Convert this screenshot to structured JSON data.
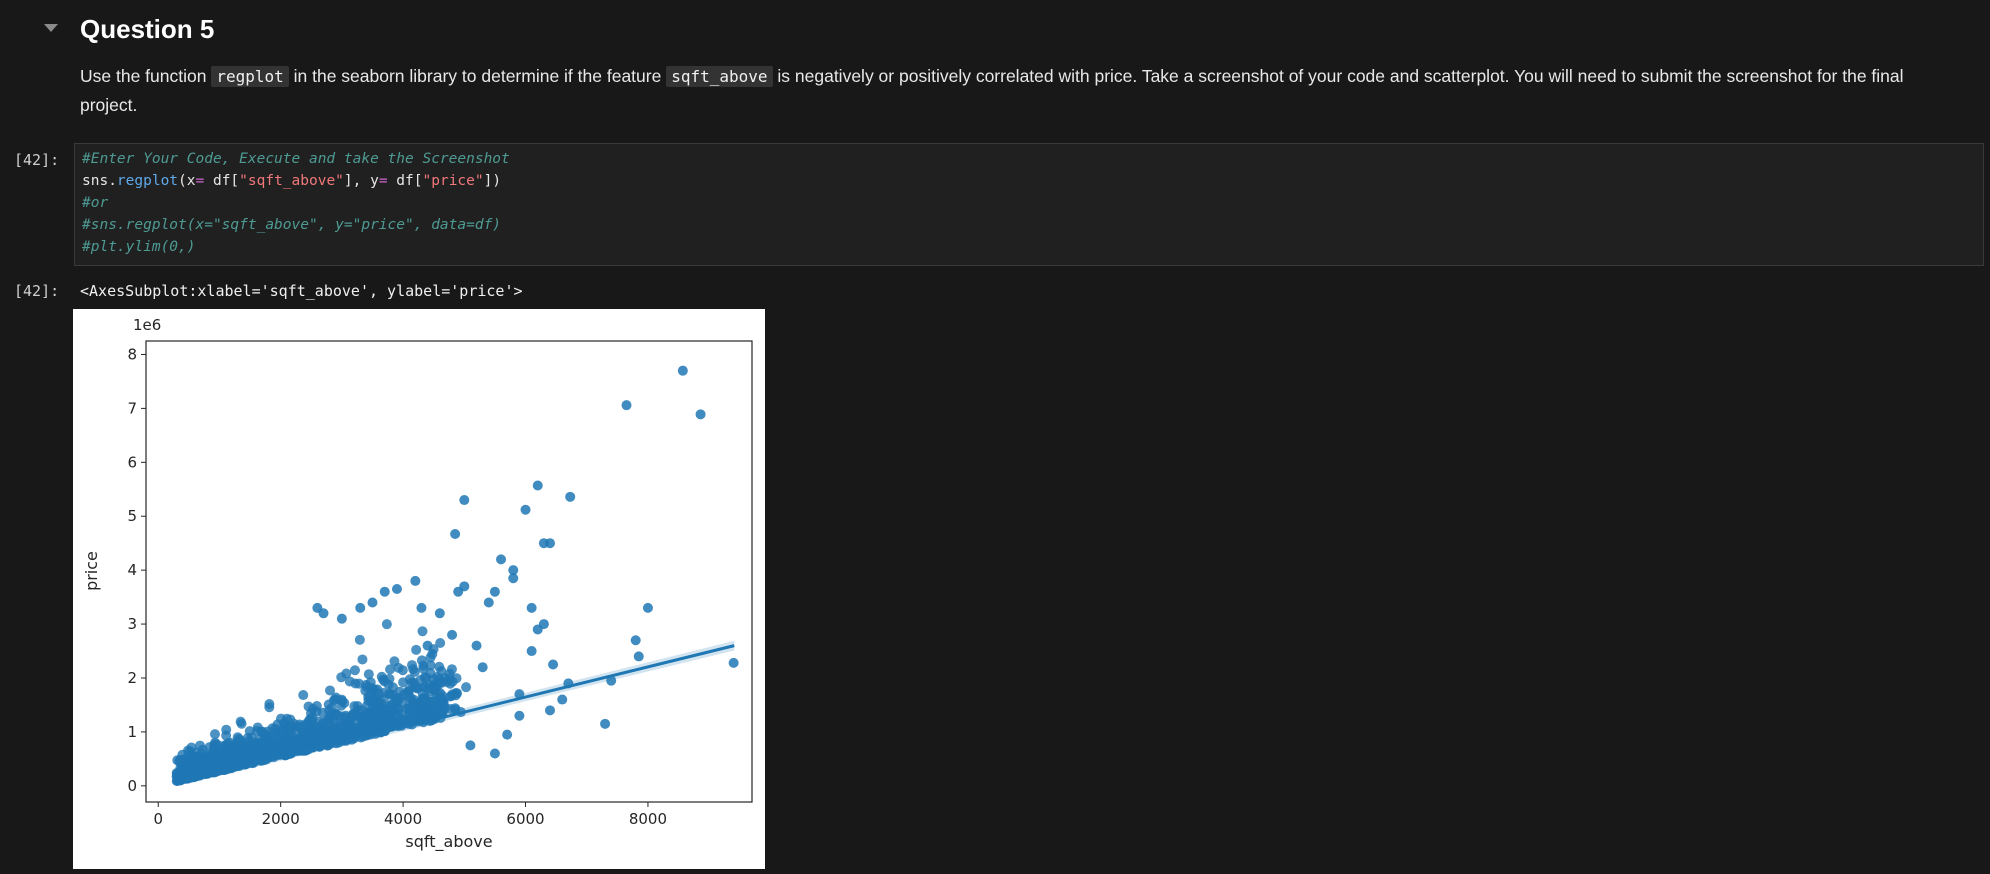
{
  "markdown": {
    "title": "Question 5",
    "paragraph": {
      "part1": "Use the function ",
      "code1": "regplot",
      "part2": " in the seaborn library to determine if the feature ",
      "code2": "sqft_above",
      "part3": " is negatively or positively correlated with price. Take a screenshot of your code and scatterplot. You will need to submit the screenshot for the final project."
    }
  },
  "code_cell": {
    "prompt": "[42]:",
    "lines": {
      "l1": "#Enter Your Code, Execute and take the Screenshot",
      "l2_a": "sns.",
      "l2_fn": "regplot",
      "l2_b": "(x",
      "l2_eq1": "=",
      "l2_c": " df[",
      "l2_s1": "\"sqft_above\"",
      "l2_d": "], y",
      "l2_eq2": "=",
      "l2_e": " df[",
      "l2_s2": "\"price\"",
      "l2_f": "])",
      "l3": "#or",
      "l4": "#sns.regplot(x=\"sqft_above\", y=\"price\", data=df)",
      "l5": "#plt.ylim(0,)"
    }
  },
  "output": {
    "prompt": "[42]:",
    "text": "<AxesSubplot:xlabel='sqft_above', ylabel='price'>"
  },
  "chart_data": {
    "type": "scatter",
    "xlabel": "sqft_above",
    "ylabel": "price",
    "offset_label": "1e6",
    "xlim": [
      -200,
      9700
    ],
    "ylim": [
      -0.3,
      8.25
    ],
    "xticks": [
      0,
      2000,
      4000,
      6000,
      8000
    ],
    "yticks": [
      0,
      1,
      2,
      3,
      4,
      5,
      6,
      7,
      8
    ],
    "color": "#1f77b4",
    "regression": {
      "x0": 290,
      "y0": 0.05,
      "x1": 9410,
      "y1": 2.6
    },
    "outliers": [
      [
        8570,
        7.7
      ],
      [
        7650,
        7.06
      ],
      [
        8860,
        6.89
      ],
      [
        6200,
        5.57
      ],
      [
        6730,
        5.36
      ],
      [
        5000,
        5.3
      ],
      [
        6000,
        5.12
      ],
      [
        4850,
        4.67
      ],
      [
        6300,
        4.5
      ],
      [
        6400,
        4.5
      ],
      [
        5600,
        4.2
      ],
      [
        5800,
        4.0
      ],
      [
        5800,
        3.85
      ],
      [
        4900,
        3.6
      ],
      [
        5000,
        3.7
      ],
      [
        5500,
        3.6
      ],
      [
        6100,
        3.3
      ],
      [
        8000,
        3.3
      ],
      [
        5400,
        3.4
      ],
      [
        6300,
        3.0
      ],
      [
        6200,
        2.9
      ],
      [
        7800,
        2.7
      ],
      [
        6100,
        2.5
      ],
      [
        7850,
        2.4
      ],
      [
        9400,
        2.28
      ],
      [
        6450,
        2.25
      ],
      [
        7400,
        1.95
      ],
      [
        6700,
        1.9
      ],
      [
        6600,
        1.6
      ],
      [
        7300,
        1.15
      ],
      [
        5700,
        0.95
      ],
      [
        5500,
        0.6
      ],
      [
        5100,
        0.75
      ],
      [
        4800,
        2.8
      ],
      [
        5200,
        2.6
      ],
      [
        4300,
        3.3
      ],
      [
        4200,
        3.8
      ],
      [
        3900,
        3.65
      ],
      [
        3700,
        3.6
      ],
      [
        3500,
        3.4
      ],
      [
        3300,
        3.3
      ],
      [
        2600,
        3.3
      ],
      [
        2700,
        3.2
      ],
      [
        3000,
        3.1
      ],
      [
        5300,
        2.2
      ],
      [
        5900,
        1.7
      ],
      [
        6400,
        1.4
      ],
      [
        5900,
        1.3
      ],
      [
        4400,
        2.6
      ],
      [
        4600,
        3.2
      ]
    ]
  }
}
